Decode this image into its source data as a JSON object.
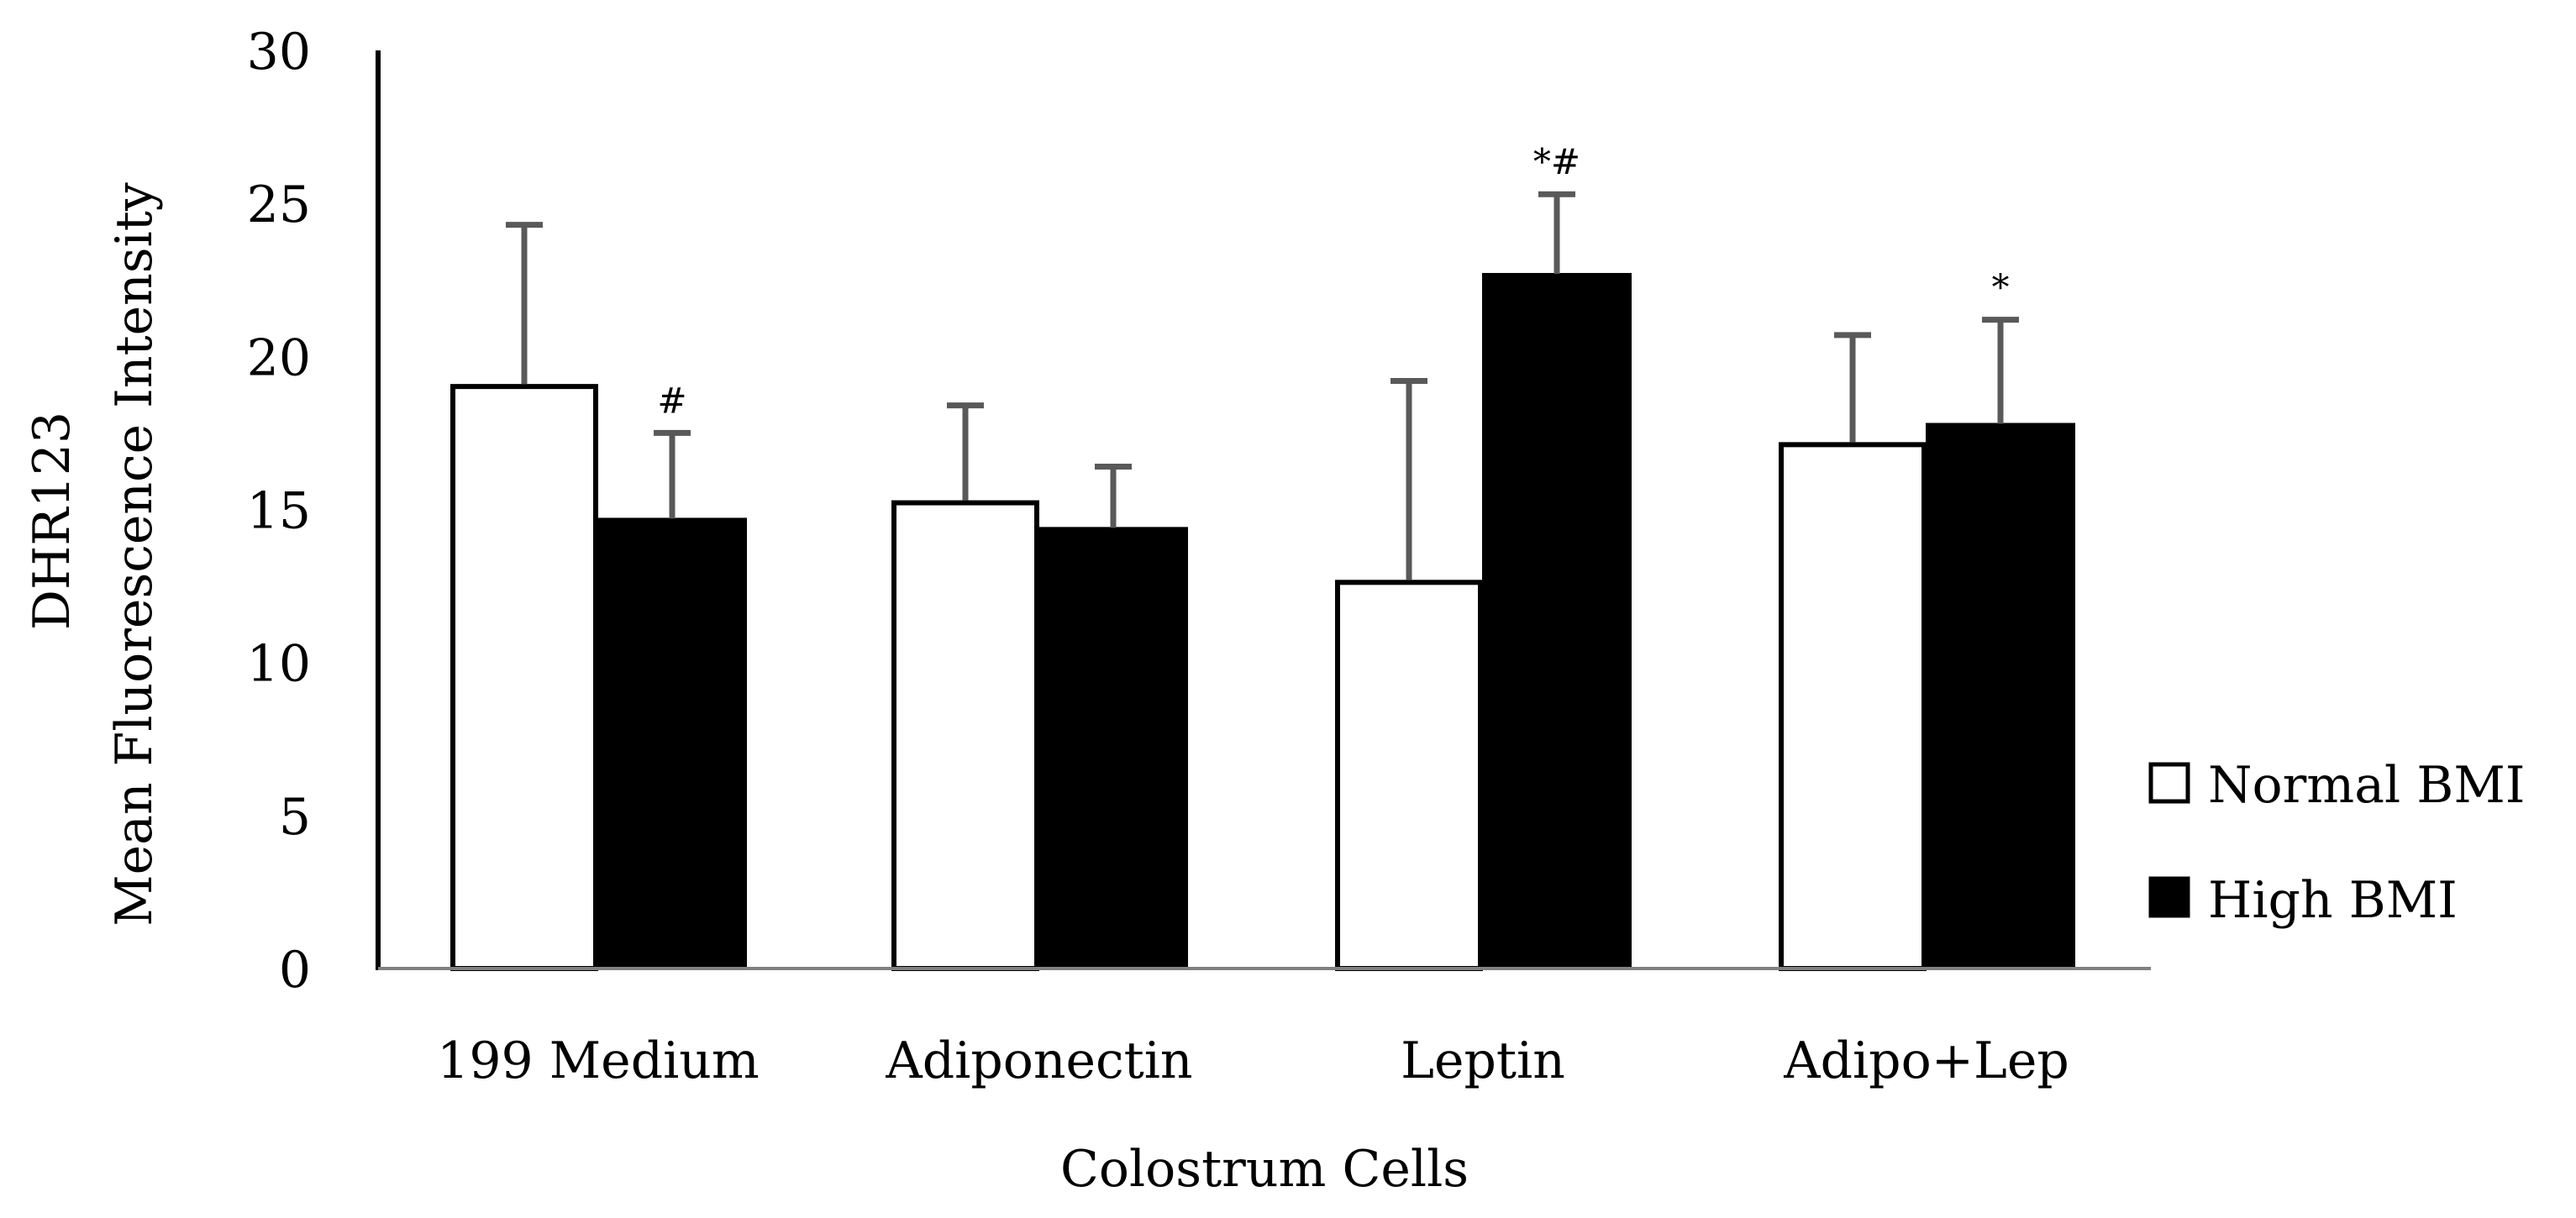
{
  "chart_data": {
    "type": "bar",
    "title": "",
    "xlabel": "Colostrum Cells",
    "ylabel_lines": [
      "DHR123",
      "Mean Fluorescence Intensity"
    ],
    "ylim": [
      0,
      30
    ],
    "yticks": [
      "0",
      "5",
      "10",
      "15",
      "20",
      "25",
      "30"
    ],
    "grid": false,
    "legend_position": "right",
    "categories": [
      "199 Medium",
      "Adiponectin",
      "Leptin",
      "Adipo+Lep"
    ],
    "series": [
      {
        "name": "Normal BMI",
        "fill": "#ffffff",
        "stroke": "#000000",
        "values": [
          19.1,
          15.3,
          12.7,
          17.2
        ],
        "error_upper": [
          24.3,
          18.4,
          19.2,
          20.7
        ],
        "annotations": [
          "",
          "",
          "",
          ""
        ]
      },
      {
        "name": "High BMI",
        "fill": "#000000",
        "stroke": "#000000",
        "values": [
          14.7,
          14.4,
          22.7,
          17.8
        ],
        "error_upper": [
          17.5,
          16.4,
          25.3,
          21.2
        ],
        "annotations": [
          "#",
          "",
          "*#",
          "*"
        ]
      }
    ],
    "colors": {
      "axis": "#808080",
      "error_bar": "#595959",
      "text": "#000000"
    }
  }
}
